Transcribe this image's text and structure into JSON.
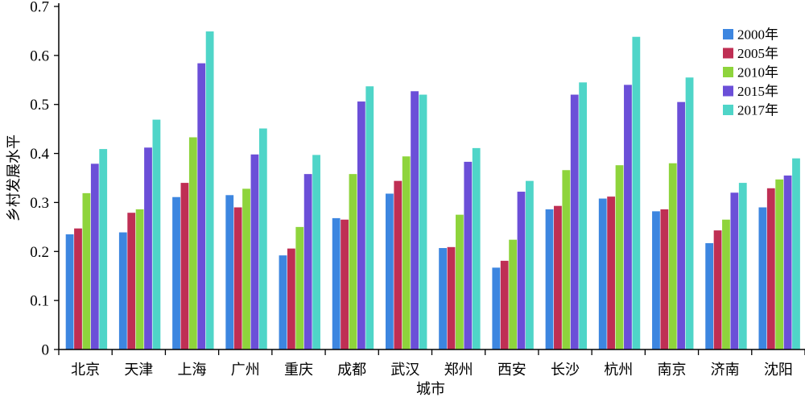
{
  "chart_data": {
    "type": "bar",
    "xlabel": "城市",
    "ylabel": "乡村发展水平",
    "ylim": [
      0,
      0.7
    ],
    "yticks": [
      "0",
      "0.1",
      "0.2",
      "0.3",
      "0.4",
      "0.5",
      "0.6",
      "0.7"
    ],
    "grid": false,
    "legend_position": "top-right",
    "categories": [
      "北京",
      "天津",
      "上海",
      "广州",
      "重庆",
      "成都",
      "武汉",
      "郑州",
      "西安",
      "长沙",
      "杭州",
      "南京",
      "济南",
      "沈阳"
    ],
    "series": [
      {
        "name": "2000年",
        "color": "#3d86e0",
        "values": [
          0.235,
          0.239,
          0.311,
          0.315,
          0.192,
          0.268,
          0.318,
          0.207,
          0.167,
          0.286,
          0.308,
          0.282,
          0.217,
          0.29
        ]
      },
      {
        "name": "2005年",
        "color": "#bf2f54",
        "values": [
          0.247,
          0.279,
          0.34,
          0.29,
          0.206,
          0.265,
          0.344,
          0.209,
          0.181,
          0.293,
          0.312,
          0.286,
          0.243,
          0.329
        ]
      },
      {
        "name": "2010年",
        "color": "#8ed43c",
        "values": [
          0.319,
          0.286,
          0.433,
          0.328,
          0.25,
          0.358,
          0.394,
          0.275,
          0.224,
          0.366,
          0.376,
          0.38,
          0.265,
          0.347
        ]
      },
      {
        "name": "2015年",
        "color": "#6b4fd8",
        "values": [
          0.379,
          0.412,
          0.584,
          0.398,
          0.358,
          0.506,
          0.527,
          0.383,
          0.322,
          0.52,
          0.54,
          0.505,
          0.32,
          0.355
        ]
      },
      {
        "name": "2017年",
        "color": "#4fd5c8",
        "values": [
          0.409,
          0.469,
          0.649,
          0.451,
          0.397,
          0.537,
          0.52,
          0.411,
          0.344,
          0.545,
          0.638,
          0.555,
          0.34,
          0.39
        ]
      }
    ]
  }
}
